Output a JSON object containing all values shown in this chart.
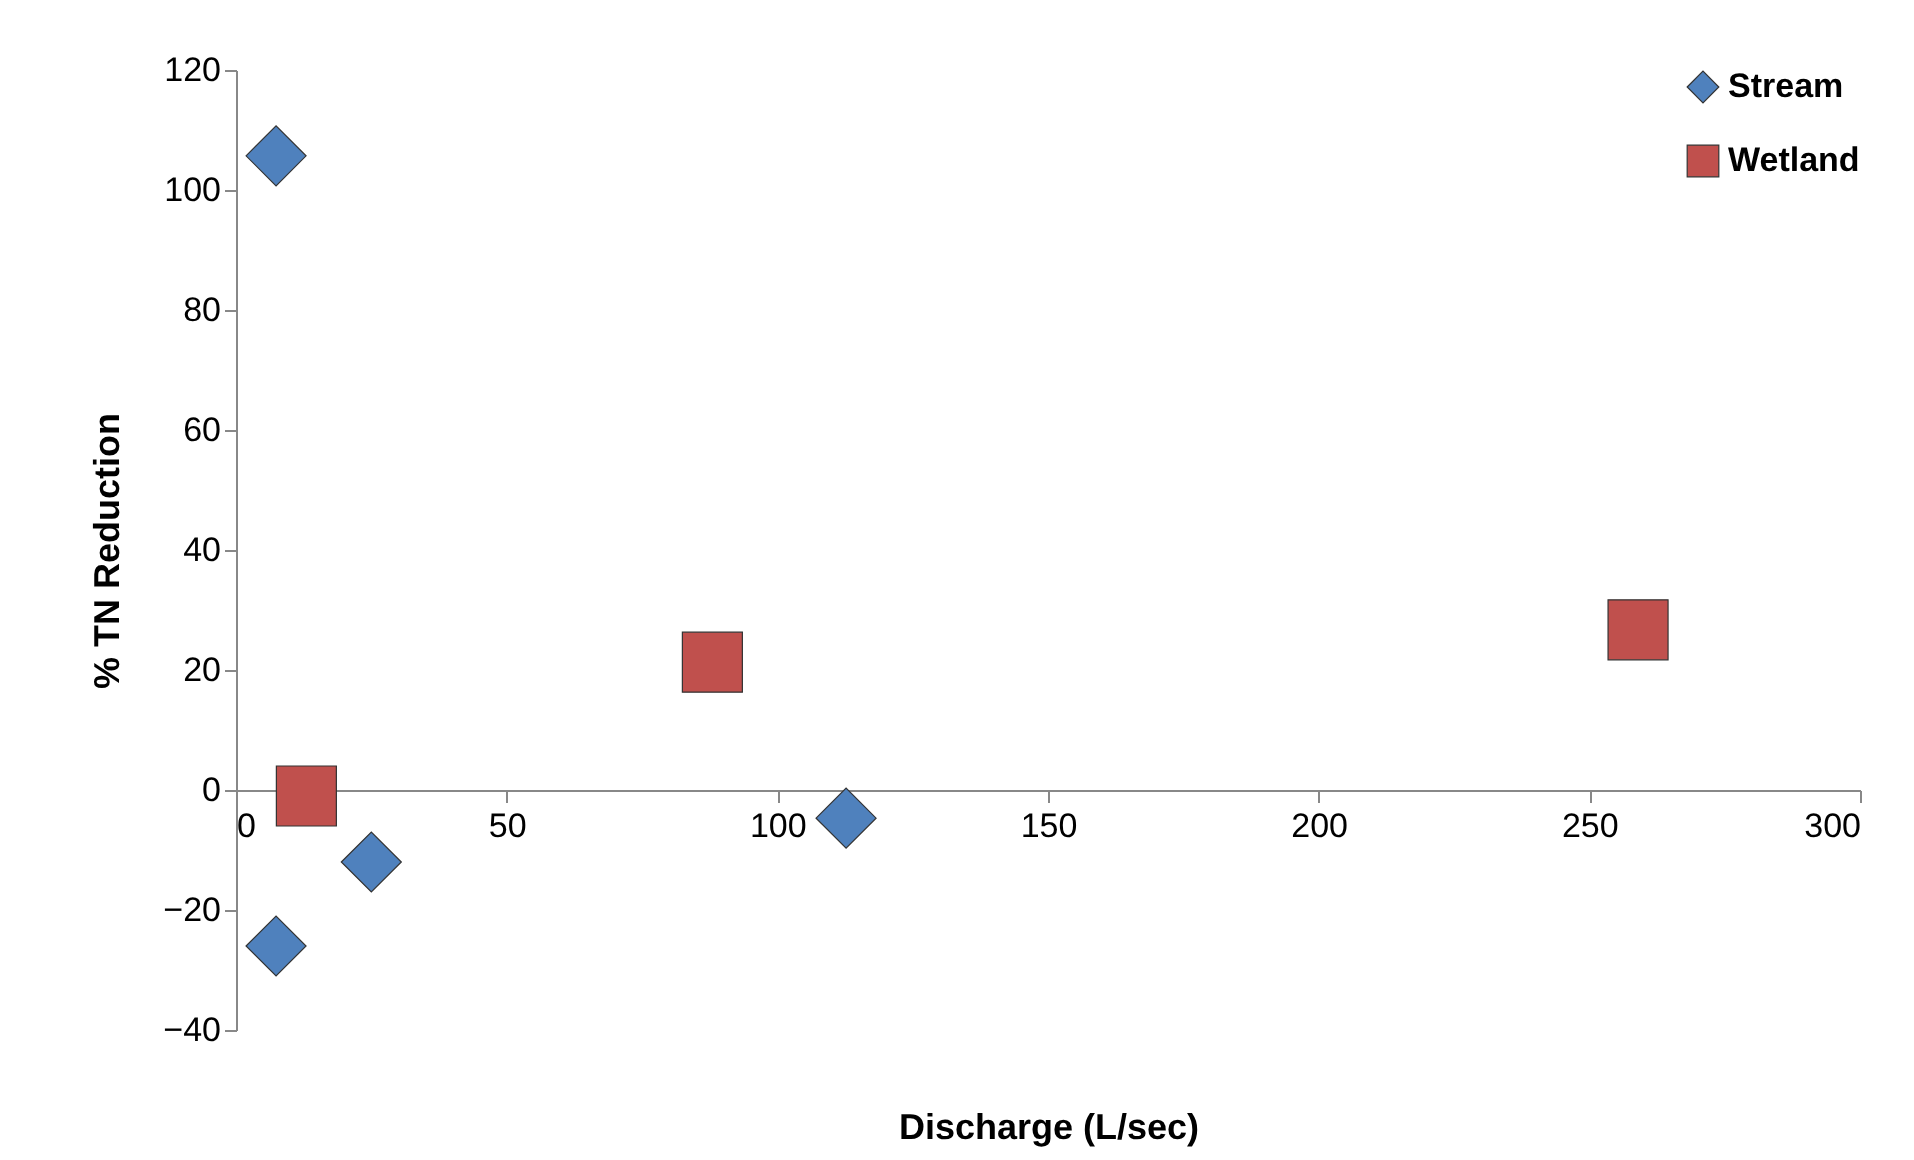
{
  "chart_data": {
    "type": "scatter",
    "xlabel": "Discharge (L/sec)",
    "ylabel": "% TN Reduction",
    "xlim": [
      0,
      300
    ],
    "xticks": [
      0,
      50,
      100,
      150,
      200,
      250,
      300
    ],
    "ylim": [
      -40,
      120
    ],
    "yticks": [
      -40,
      -20,
      0,
      20,
      40,
      60,
      80,
      100,
      120
    ],
    "grid": false,
    "legend": "top right",
    "series": [
      {
        "name": "Stream",
        "color": "#4f81bd",
        "marker": "diamond",
        "x": [
          7.4,
          7.4,
          25,
          112.7
        ],
        "values": [
          105.7,
          -26,
          -12,
          -4.7
        ]
      },
      {
        "name": "Wetland",
        "color": "#c0504d",
        "marker": "square",
        "x": [
          13,
          88,
          259
        ],
        "values": [
          -1,
          21.3,
          26.7
        ]
      }
    ]
  }
}
